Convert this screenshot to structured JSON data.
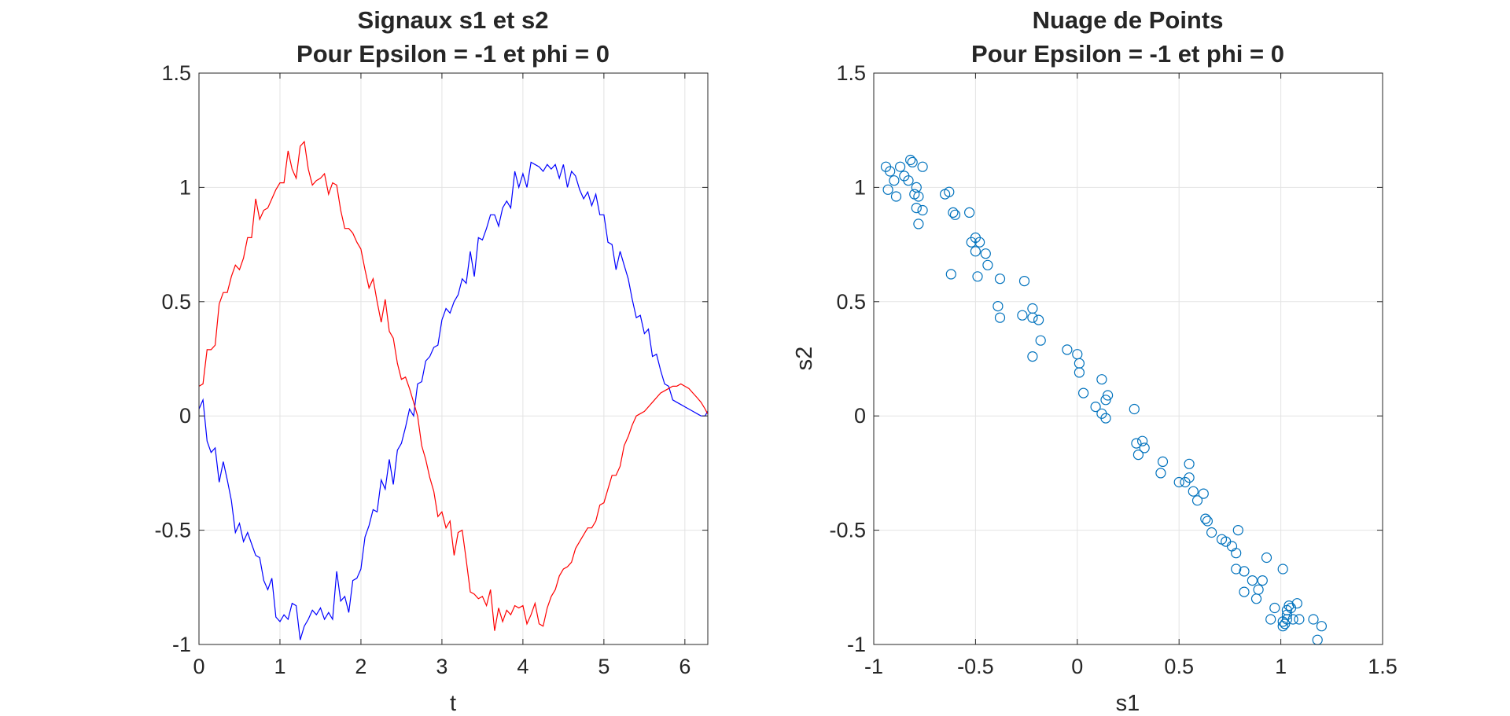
{
  "chart_data": [
    {
      "type": "line",
      "title": "Signaux s1 et s2",
      "subtitle": "Pour Epsilon = -1 et phi = 0",
      "xlabel": "t",
      "ylabel": "",
      "xlim": [
        0,
        6.2832
      ],
      "ylim": [
        -1,
        1.5
      ],
      "grid": true,
      "x_ticks": [
        "0",
        "1",
        "2",
        "3",
        "4",
        "5",
        "6"
      ],
      "y_ticks": [
        "-1",
        "-0.5",
        "0",
        "0.5",
        "1",
        "1.5"
      ],
      "x": [
        0,
        0.05,
        0.1,
        0.15,
        0.2,
        0.25,
        0.3,
        0.35,
        0.4,
        0.45,
        0.5,
        0.55,
        0.6,
        0.65,
        0.7,
        0.75,
        0.8,
        0.85,
        0.9,
        0.95,
        1.0,
        1.05,
        1.1,
        1.15,
        1.2,
        1.25,
        1.3,
        1.35,
        1.4,
        1.45,
        1.5,
        1.55,
        1.6,
        1.65,
        1.7,
        1.75,
        1.8,
        1.85,
        1.9,
        1.95,
        2.0,
        2.05,
        2.1,
        2.15,
        2.2,
        2.25,
        2.3,
        2.35,
        2.4,
        2.45,
        2.5,
        2.55,
        2.6,
        2.65,
        2.7,
        2.75,
        2.8,
        2.85,
        2.9,
        2.95,
        3.0,
        3.05,
        3.1,
        3.15,
        3.2,
        3.25,
        3.3,
        3.35,
        3.4,
        3.45,
        3.5,
        3.55,
        3.6,
        3.65,
        3.7,
        3.75,
        3.8,
        3.85,
        3.9,
        3.95,
        4.0,
        4.05,
        4.1,
        4.15,
        4.2,
        4.25,
        4.3,
        4.35,
        4.4,
        4.45,
        4.5,
        4.55,
        4.6,
        4.65,
        4.7,
        4.75,
        4.8,
        4.85,
        4.9,
        4.95,
        5.0,
        5.05,
        5.1,
        5.15,
        5.2,
        5.25,
        5.3,
        5.35,
        5.4,
        5.45,
        5.5,
        5.55,
        5.6,
        5.65,
        5.7,
        5.75,
        5.8,
        5.85,
        5.9,
        5.95,
        6.0,
        6.05,
        6.1,
        6.15,
        6.2,
        6.25,
        6.28
      ],
      "series": [
        {
          "color": "#0000ff",
          "values": [
            0.03,
            0.07,
            -0.11,
            -0.16,
            -0.14,
            -0.29,
            -0.2,
            -0.28,
            -0.37,
            -0.51,
            -0.47,
            -0.55,
            -0.51,
            -0.56,
            -0.61,
            -0.62,
            -0.72,
            -0.76,
            -0.71,
            -0.88,
            -0.9,
            -0.87,
            -0.89,
            -0.82,
            -0.83,
            -0.98,
            -0.92,
            -0.89,
            -0.85,
            -0.87,
            -0.84,
            -0.89,
            -0.86,
            -0.89,
            -0.68,
            -0.81,
            -0.79,
            -0.86,
            -0.72,
            -0.71,
            -0.67,
            -0.53,
            -0.48,
            -0.41,
            -0.42,
            -0.28,
            -0.32,
            -0.19,
            -0.3,
            -0.15,
            -0.12,
            -0.05,
            0.03,
            0.0,
            0.14,
            0.15,
            0.24,
            0.26,
            0.3,
            0.31,
            0.42,
            0.47,
            0.45,
            0.5,
            0.53,
            0.6,
            0.58,
            0.72,
            0.61,
            0.78,
            0.77,
            0.82,
            0.88,
            0.88,
            0.83,
            0.91,
            0.94,
            0.91,
            1.07,
            1.0,
            1.06,
            1.0,
            1.11,
            1.1,
            1.09,
            1.07,
            1.1,
            1.08,
            1.1,
            1.04,
            1.1,
            1.0,
            1.07,
            1.05,
            0.99,
            0.95,
            0.98,
            0.92,
            0.97,
            0.88,
            0.88,
            0.76,
            0.75,
            0.64,
            0.72,
            0.66,
            0.6,
            0.51,
            0.43,
            0.44,
            0.36,
            0.38,
            0.26,
            0.27,
            0.2,
            0.14,
            0.13,
            0.07,
            0.06,
            0.05,
            0.04,
            0.03,
            0.02,
            0.01,
            0.0,
            0.0,
            0.02
          ]
        },
        {
          "color": "#ff0000",
          "values": [
            0.13,
            0.14,
            0.29,
            0.29,
            0.31,
            0.49,
            0.54,
            0.54,
            0.61,
            0.66,
            0.64,
            0.69,
            0.78,
            0.78,
            0.95,
            0.86,
            0.9,
            0.91,
            0.95,
            0.99,
            1.02,
            1.02,
            1.16,
            1.08,
            1.04,
            1.18,
            1.2,
            1.08,
            1.01,
            1.03,
            1.04,
            1.06,
            0.97,
            1.02,
            1.01,
            0.9,
            0.82,
            0.82,
            0.8,
            0.76,
            0.73,
            0.64,
            0.56,
            0.6,
            0.5,
            0.41,
            0.51,
            0.37,
            0.34,
            0.23,
            0.16,
            0.17,
            0.12,
            0.06,
            0.0,
            -0.13,
            -0.19,
            -0.27,
            -0.33,
            -0.44,
            -0.42,
            -0.49,
            -0.46,
            -0.61,
            -0.51,
            -0.5,
            -0.63,
            -0.77,
            -0.78,
            -0.8,
            -0.79,
            -0.83,
            -0.76,
            -0.94,
            -0.84,
            -0.9,
            -0.85,
            -0.87,
            -0.83,
            -0.84,
            -0.83,
            -0.91,
            -0.87,
            -0.82,
            -0.91,
            -0.92,
            -0.84,
            -0.79,
            -0.76,
            -0.7,
            -0.67,
            -0.66,
            -0.64,
            -0.58,
            -0.55,
            -0.52,
            -0.49,
            -0.49,
            -0.46,
            -0.39,
            -0.38,
            -0.32,
            -0.26,
            -0.26,
            -0.22,
            -0.13,
            -0.09,
            -0.04,
            0.0,
            0.01,
            0.02,
            0.04,
            0.06,
            0.08,
            0.1,
            0.11,
            0.12,
            0.13,
            0.13,
            0.14,
            0.13,
            0.12,
            0.1,
            0.08,
            0.06,
            0.03,
            0.01
          ]
        }
      ]
    },
    {
      "type": "scatter",
      "title": "Nuage de Points",
      "subtitle": "Pour Epsilon = -1 et phi = 0",
      "xlabel": "s1",
      "ylabel": "s2",
      "xlim": [
        -1,
        1.5
      ],
      "ylim": [
        -1,
        1.5
      ],
      "grid": true,
      "x_ticks": [
        "-1",
        "-0.5",
        "0",
        "0.5",
        "1",
        "1.5"
      ],
      "y_ticks": [
        "-1",
        "-0.5",
        "0",
        "0.5",
        "1",
        "1.5"
      ],
      "marker_color": "#0072bd",
      "points": [
        [
          -0.94,
          1.09
        ],
        [
          -0.92,
          1.07
        ],
        [
          -0.9,
          1.03
        ],
        [
          -0.93,
          0.99
        ],
        [
          -0.89,
          0.96
        ],
        [
          -0.87,
          1.09
        ],
        [
          -0.85,
          1.05
        ],
        [
          -0.83,
          1.03
        ],
        [
          -0.81,
          1.11
        ],
        [
          -0.82,
          1.12
        ],
        [
          -0.79,
          1.0
        ],
        [
          -0.76,
          1.09
        ],
        [
          -0.78,
          0.96
        ],
        [
          -0.8,
          0.97
        ],
        [
          -0.76,
          0.9
        ],
        [
          -0.79,
          0.91
        ],
        [
          -0.78,
          0.84
        ],
        [
          -0.65,
          0.97
        ],
        [
          -0.63,
          0.98
        ],
        [
          -0.61,
          0.89
        ],
        [
          -0.6,
          0.88
        ],
        [
          -0.53,
          0.89
        ],
        [
          -0.5,
          0.78
        ],
        [
          -0.48,
          0.76
        ],
        [
          -0.52,
          0.76
        ],
        [
          -0.5,
          0.72
        ],
        [
          -0.45,
          0.71
        ],
        [
          -0.44,
          0.66
        ],
        [
          -0.49,
          0.61
        ],
        [
          -0.62,
          0.62
        ],
        [
          -0.38,
          0.6
        ],
        [
          -0.39,
          0.48
        ],
        [
          -0.38,
          0.43
        ],
        [
          -0.26,
          0.59
        ],
        [
          -0.22,
          0.47
        ],
        [
          -0.22,
          0.43
        ],
        [
          -0.27,
          0.44
        ],
        [
          -0.19,
          0.42
        ],
        [
          -0.18,
          0.33
        ],
        [
          -0.05,
          0.29
        ],
        [
          0.0,
          0.27
        ],
        [
          0.01,
          0.23
        ],
        [
          0.01,
          0.19
        ],
        [
          0.12,
          0.16
        ],
        [
          -0.22,
          0.26
        ],
        [
          0.03,
          0.1
        ],
        [
          0.15,
          0.09
        ],
        [
          0.14,
          0.07
        ],
        [
          0.09,
          0.04
        ],
        [
          0.12,
          0.01
        ],
        [
          0.14,
          -0.01
        ],
        [
          0.28,
          0.03
        ],
        [
          0.29,
          -0.12
        ],
        [
          0.3,
          -0.17
        ],
        [
          0.32,
          -0.11
        ],
        [
          0.33,
          -0.14
        ],
        [
          0.42,
          -0.2
        ],
        [
          0.41,
          -0.25
        ],
        [
          0.5,
          -0.29
        ],
        [
          0.55,
          -0.21
        ],
        [
          0.55,
          -0.27
        ],
        [
          0.53,
          -0.29
        ],
        [
          0.57,
          -0.33
        ],
        [
          0.59,
          -0.37
        ],
        [
          0.62,
          -0.34
        ],
        [
          0.63,
          -0.45
        ],
        [
          0.64,
          -0.46
        ],
        [
          0.66,
          -0.51
        ],
        [
          0.71,
          -0.54
        ],
        [
          0.73,
          -0.55
        ],
        [
          0.76,
          -0.57
        ],
        [
          0.79,
          -0.5
        ],
        [
          0.78,
          -0.6
        ],
        [
          0.78,
          -0.67
        ],
        [
          0.82,
          -0.68
        ],
        [
          0.82,
          -0.77
        ],
        [
          0.86,
          -0.72
        ],
        [
          0.88,
          -0.8
        ],
        [
          0.89,
          -0.76
        ],
        [
          0.91,
          -0.72
        ],
        [
          0.93,
          -0.62
        ],
        [
          1.01,
          -0.67
        ],
        [
          0.97,
          -0.84
        ],
        [
          0.95,
          -0.89
        ],
        [
          1.01,
          -0.9
        ],
        [
          1.02,
          -0.91
        ],
        [
          1.03,
          -0.85
        ],
        [
          1.04,
          -0.83
        ],
        [
          1.03,
          -0.87
        ],
        [
          1.05,
          -0.84
        ],
        [
          1.08,
          -0.82
        ],
        [
          1.06,
          -0.89
        ],
        [
          1.09,
          -0.89
        ],
        [
          1.01,
          -0.92
        ],
        [
          1.16,
          -0.89
        ],
        [
          1.2,
          -0.92
        ],
        [
          1.18,
          -0.98
        ],
        [
          1.03,
          -0.89
        ]
      ]
    }
  ]
}
